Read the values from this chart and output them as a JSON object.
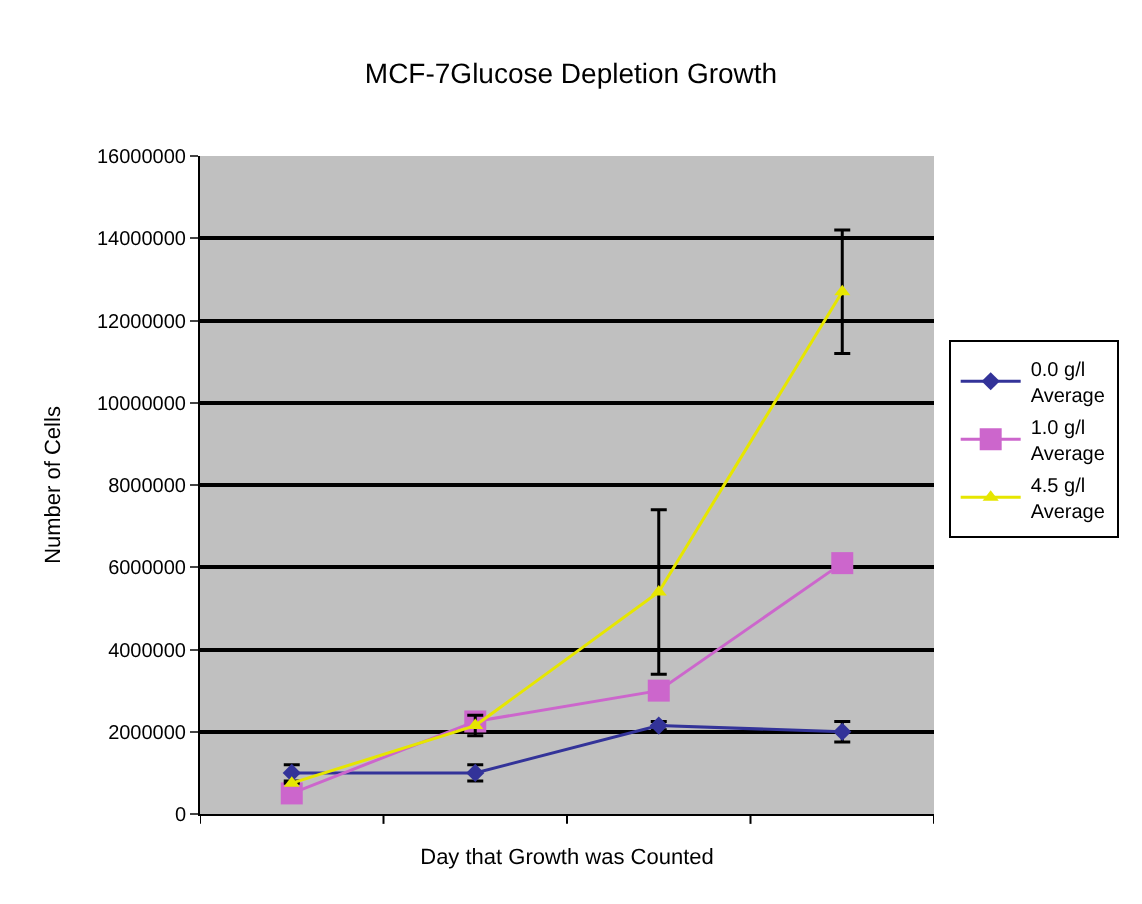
{
  "chart_data": {
    "type": "line",
    "title": "MCF-7Glucose Depletion Growth",
    "xlabel": "Day that Growth was Counted",
    "ylabel": "Number of Cells",
    "categories": [
      null,
      null,
      null,
      null
    ],
    "series": [
      {
        "name": "0.0 g/l Average",
        "color": "#333399",
        "marker": "diamond",
        "values": [
          1000000,
          1000000,
          2150000,
          2000000
        ],
        "errors": [
          200000,
          200000,
          100000,
          250000
        ]
      },
      {
        "name": "1.0 g/l Average",
        "color": "#cc66cc",
        "marker": "square",
        "values": [
          500000,
          2250000,
          3000000,
          6100000
        ]
      },
      {
        "name": "4.5 g/l Average",
        "color": "#e6e600",
        "marker": "triangle",
        "values": [
          750000,
          2150000,
          5400000,
          12700000
        ],
        "errors": [
          null,
          250000,
          2000000,
          1500000
        ]
      }
    ],
    "ylim": [
      0,
      16000000
    ],
    "yticks": [
      0,
      2000000,
      4000000,
      6000000,
      8000000,
      10000000,
      12000000,
      14000000,
      16000000
    ],
    "grid": "y",
    "legend": "right"
  }
}
